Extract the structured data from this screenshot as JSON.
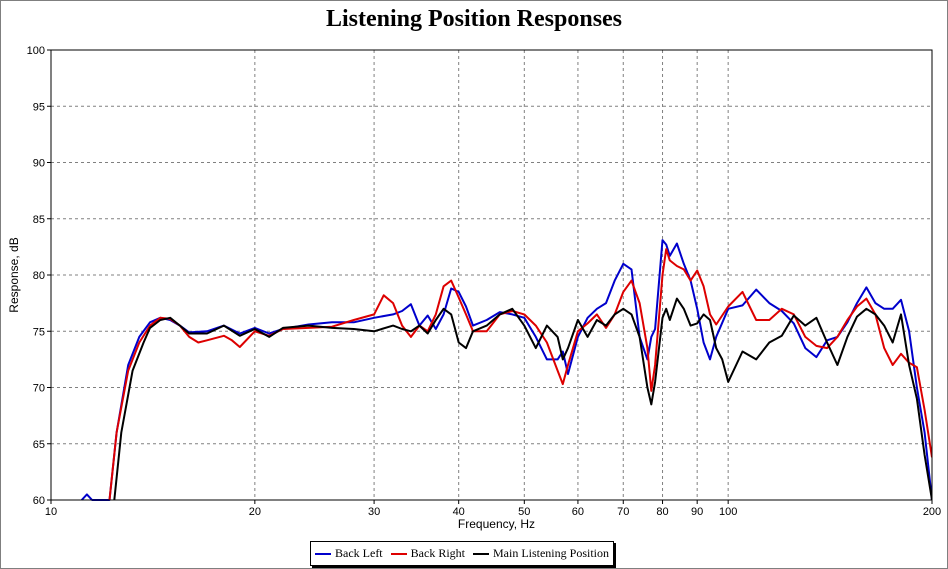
{
  "chart_data": {
    "type": "line",
    "title": "Listening Position Responses",
    "xlabel": "Frequency, Hz",
    "ylabel": "Response, dB",
    "x_scale": "log",
    "xlim": [
      10,
      200
    ],
    "ylim": [
      60,
      100
    ],
    "x_ticks": [
      10,
      20,
      30,
      40,
      50,
      60,
      70,
      80,
      90,
      100,
      200
    ],
    "y_ticks": [
      60,
      65,
      70,
      75,
      80,
      85,
      90,
      95,
      100
    ],
    "grid": true,
    "legend_position": "bottom",
    "series": [
      {
        "name": "Back Left",
        "color": "#0000cc",
        "x": [
          11.1,
          11.3,
          11.5,
          12.2,
          12.5,
          13.0,
          13.5,
          14.0,
          14.5,
          15.0,
          15.5,
          16.0,
          17.0,
          18.0,
          19.0,
          20.0,
          21.0,
          22.0,
          24.0,
          26.0,
          28.0,
          30.0,
          32.0,
          33.0,
          34.0,
          35.0,
          36.0,
          37.0,
          38.0,
          39.0,
          40.0,
          41.0,
          42.0,
          44.0,
          46.0,
          48.0,
          50.0,
          52.0,
          54.0,
          56.0,
          57.0,
          58.0,
          60.0,
          62.0,
          64.0,
          66.0,
          68.0,
          70.0,
          72.0,
          74.0,
          76.0,
          77.0,
          78.0,
          80.0,
          81.0,
          82.0,
          84.0,
          86.0,
          88.0,
          90.0,
          92.0,
          94.0,
          96.0,
          100.0,
          105.0,
          110.0,
          115.0,
          120.0,
          125.0,
          130.0,
          135.0,
          140.0,
          145.0,
          150.0,
          155.0,
          160.0,
          165.0,
          170.0,
          175.0,
          180.0,
          185.0,
          190.0,
          195.0,
          200.0
        ],
        "values": [
          60,
          60.5,
          60,
          60,
          66,
          72,
          74.5,
          75.8,
          76.2,
          76.0,
          75.5,
          74.9,
          75.0,
          75.5,
          74.8,
          75.3,
          74.8,
          75.2,
          75.6,
          75.8,
          75.8,
          76.2,
          76.5,
          76.8,
          77.4,
          75.5,
          76.4,
          75.2,
          76.5,
          78.8,
          78.5,
          77.2,
          75.5,
          76.0,
          76.7,
          76.5,
          76.2,
          74.5,
          72.5,
          72.5,
          73.2,
          71.2,
          74.5,
          76.2,
          77.0,
          77.5,
          79.5,
          81.0,
          80.5,
          74.5,
          72.5,
          74.5,
          75.2,
          83.1,
          82.7,
          81.7,
          82.8,
          81.0,
          79.5,
          77.0,
          74.0,
          72.5,
          74.5,
          77.0,
          77.3,
          78.7,
          77.5,
          76.8,
          75.7,
          73.5,
          72.7,
          74.2,
          74.5,
          75.8,
          77.5,
          78.9,
          77.5,
          77.0,
          77.0,
          77.8,
          75.0,
          70.0,
          66.0,
          60.0
        ]
      },
      {
        "name": "Back Right",
        "color": "#dd0000",
        "x": [
          12.2,
          12.5,
          13.0,
          13.5,
          14.0,
          14.5,
          15.0,
          15.5,
          16.0,
          16.5,
          17.0,
          18.0,
          18.5,
          19.0,
          20.0,
          21.0,
          22.0,
          24.0,
          26.0,
          28.0,
          30.0,
          31.0,
          32.0,
          33.0,
          34.0,
          35.0,
          36.0,
          37.0,
          38.0,
          39.0,
          40.0,
          41.0,
          42.0,
          44.0,
          46.0,
          48.0,
          50.0,
          52.0,
          54.0,
          56.0,
          57.0,
          58.0,
          60.0,
          62.0,
          64.0,
          66.0,
          68.0,
          70.0,
          72.0,
          74.0,
          76.0,
          77.0,
          78.0,
          80.0,
          81.0,
          82.0,
          84.0,
          86.0,
          88.0,
          90.0,
          92.0,
          94.0,
          96.0,
          100.0,
          105.0,
          110.0,
          115.0,
          120.0,
          125.0,
          130.0,
          135.0,
          140.0,
          145.0,
          150.0,
          155.0,
          160.0,
          165.0,
          170.0,
          175.0,
          180.0,
          185.0,
          190.0,
          195.0,
          200.0
        ],
        "values": [
          60,
          66,
          71.5,
          74.0,
          75.5,
          76.2,
          76.1,
          75.5,
          74.5,
          74.0,
          74.2,
          74.6,
          74.2,
          73.6,
          75.0,
          74.6,
          75.2,
          75.3,
          75.4,
          76.0,
          76.5,
          78.2,
          77.5,
          75.5,
          74.5,
          75.5,
          75.0,
          76.5,
          79.0,
          79.5,
          78.0,
          76.5,
          75.0,
          75.0,
          76.5,
          76.8,
          76.5,
          75.5,
          74.0,
          71.5,
          70.3,
          72.0,
          75.0,
          75.7,
          76.5,
          75.3,
          76.5,
          78.5,
          79.5,
          77.5,
          73.5,
          69.7,
          72.0,
          80.0,
          82.3,
          81.3,
          80.8,
          80.5,
          79.5,
          80.4,
          79.0,
          76.5,
          75.6,
          77.2,
          78.5,
          76.0,
          76.0,
          77.0,
          76.5,
          74.5,
          73.7,
          73.5,
          74.5,
          76.0,
          77.2,
          77.9,
          76.5,
          73.5,
          72.0,
          73.0,
          72.2,
          71.8,
          68.0,
          63.8
        ]
      },
      {
        "name": "Main Listening Position",
        "color": "#000000",
        "x": [
          12.4,
          12.7,
          13.2,
          13.7,
          14.0,
          14.5,
          15.0,
          15.5,
          16.0,
          17.0,
          18.0,
          19.0,
          20.0,
          21.0,
          22.0,
          24.0,
          26.0,
          28.0,
          30.0,
          32.0,
          33.0,
          34.0,
          35.0,
          36.0,
          37.0,
          38.0,
          39.0,
          40.0,
          41.0,
          42.0,
          44.0,
          46.0,
          48.0,
          50.0,
          52.0,
          54.0,
          56.0,
          57.0,
          58.0,
          60.0,
          62.0,
          64.0,
          66.0,
          68.0,
          70.0,
          72.0,
          74.0,
          76.0,
          77.0,
          78.0,
          80.0,
          81.0,
          82.0,
          84.0,
          86.0,
          88.0,
          90.0,
          92.0,
          94.0,
          96.0,
          98.0,
          100.0,
          105.0,
          110.0,
          115.0,
          120.0,
          125.0,
          130.0,
          135.0,
          140.0,
          145.0,
          150.0,
          155.0,
          160.0,
          165.0,
          170.0,
          175.0,
          180.0,
          185.0,
          190.0,
          195.0,
          200.0
        ],
        "values": [
          60,
          66,
          71.5,
          74.0,
          75.3,
          76.0,
          76.2,
          75.5,
          74.8,
          74.8,
          75.5,
          74.6,
          75.2,
          74.5,
          75.3,
          75.5,
          75.3,
          75.2,
          75.0,
          75.5,
          75.2,
          75.0,
          75.5,
          74.8,
          76.0,
          77.0,
          76.5,
          74.0,
          73.5,
          75.0,
          75.5,
          76.5,
          77.0,
          75.5,
          73.5,
          75.5,
          74.5,
          72.5,
          73.5,
          76.0,
          74.5,
          76.0,
          75.5,
          76.5,
          77.0,
          76.5,
          74.5,
          70.0,
          68.5,
          70.5,
          76.2,
          77.0,
          76.0,
          77.9,
          77.0,
          75.5,
          75.7,
          76.5,
          76.0,
          73.5,
          72.5,
          70.5,
          73.2,
          72.5,
          74.0,
          74.6,
          76.4,
          75.5,
          76.2,
          74.0,
          72.0,
          74.5,
          76.3,
          77.0,
          76.5,
          75.5,
          74.0,
          76.5,
          72.0,
          69.0,
          64.0,
          60.0
        ]
      }
    ]
  }
}
